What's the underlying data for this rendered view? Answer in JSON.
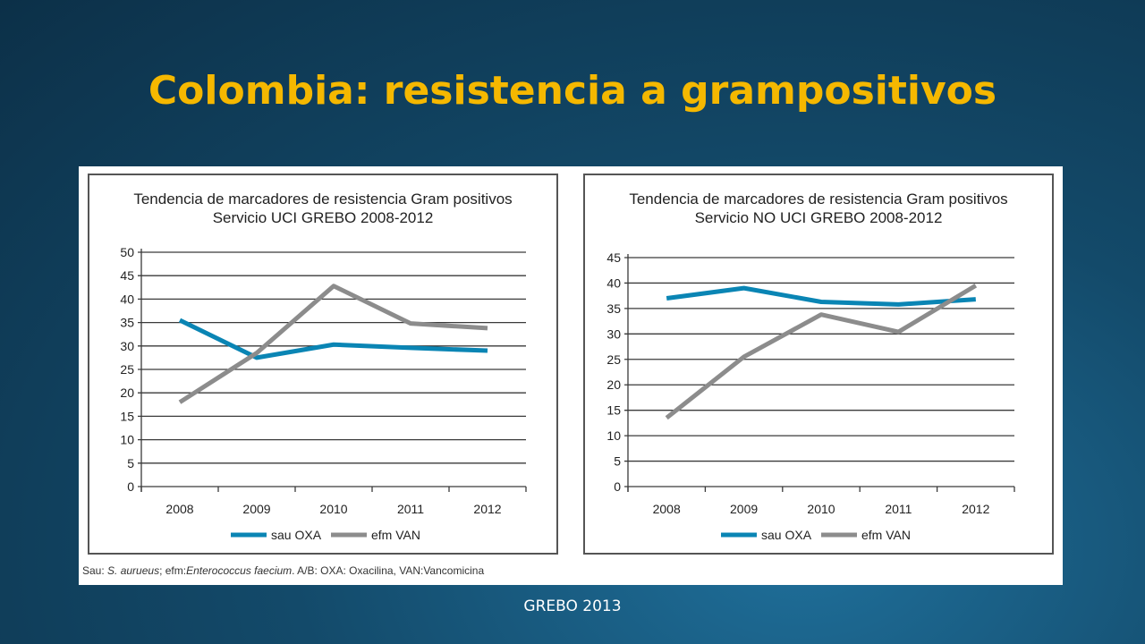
{
  "slide": {
    "title": "Colombia: resistencia a grampositivos",
    "footer": "GREBO 2013"
  },
  "source_note": {
    "prefix": "Sau: ",
    "sau_species": "S. aurueus",
    "efm_prefix": "; efm:",
    "efm_species": "Enterococcus faecium",
    "suffix": ". A/B: OXA: Oxacilina, VAN:Vancomicina"
  },
  "colors": {
    "title": "#f5b800",
    "sau_OXA": "#0a85b4",
    "efm_VAN": "#8c8c8c"
  },
  "chart_data": [
    {
      "type": "line",
      "title": "Tendencia de marcadores de resistencia Gram positivos",
      "subtitle": "Servicio UCI  GREBO 2008-2012",
      "categories": [
        "2008",
        "2009",
        "2010",
        "2011",
        "2012"
      ],
      "series": [
        {
          "name": "sau OXA",
          "values": [
            35.5,
            27.5,
            30.3,
            29.6,
            29.0
          ]
        },
        {
          "name": "efm VAN",
          "values": [
            18.0,
            28.5,
            42.8,
            34.8,
            33.8
          ]
        }
      ],
      "ylim": [
        0,
        50
      ],
      "yticks": [
        0,
        5,
        10,
        15,
        20,
        25,
        30,
        35,
        40,
        45,
        50
      ],
      "grid": true,
      "legend": "bottom"
    },
    {
      "type": "line",
      "title": "Tendencia de marcadores de resistencia Gram positivos",
      "subtitle": "Servicio NO UCI  GREBO 2008-2012",
      "categories": [
        "2008",
        "2009",
        "2010",
        "2011",
        "2012"
      ],
      "series": [
        {
          "name": "sau OXA",
          "values": [
            37.0,
            39.0,
            36.3,
            35.8,
            36.8
          ]
        },
        {
          "name": "efm VAN",
          "values": [
            13.5,
            25.5,
            33.8,
            30.4,
            39.5
          ]
        }
      ],
      "ylim": [
        0,
        45
      ],
      "yticks": [
        0,
        5,
        10,
        15,
        20,
        25,
        30,
        35,
        40,
        45
      ],
      "grid": true,
      "legend": "bottom"
    }
  ]
}
